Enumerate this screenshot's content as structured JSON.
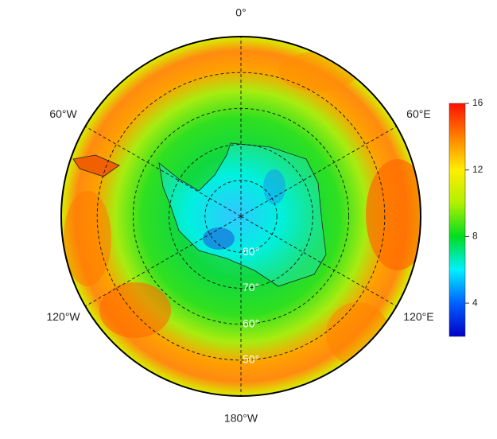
{
  "map": {
    "boundary_lat": -40,
    "meridians": [
      {
        "value": 0,
        "label": "0°"
      },
      {
        "value": 60,
        "label": "60°E"
      },
      {
        "value": 120,
        "label": "120°E"
      },
      {
        "value": 180,
        "label": "180°W"
      },
      {
        "value": -120,
        "label": "120°W"
      },
      {
        "value": -60,
        "label": "60°W"
      }
    ],
    "parallels": [
      {
        "value": -80,
        "label": "80°"
      },
      {
        "value": -70,
        "label": "70°"
      },
      {
        "value": -60,
        "label": "60°"
      },
      {
        "value": -50,
        "label": "50°"
      }
    ],
    "colorbar": {
      "lim": [
        2,
        16
      ],
      "ticks": [
        4,
        8,
        12,
        16
      ],
      "colors": [
        "#0000c8",
        "#0060ff",
        "#00f0ff",
        "#00dd20",
        "#b0f000",
        "#ffee00",
        "#ff8000",
        "#ff1000"
      ]
    }
  }
}
